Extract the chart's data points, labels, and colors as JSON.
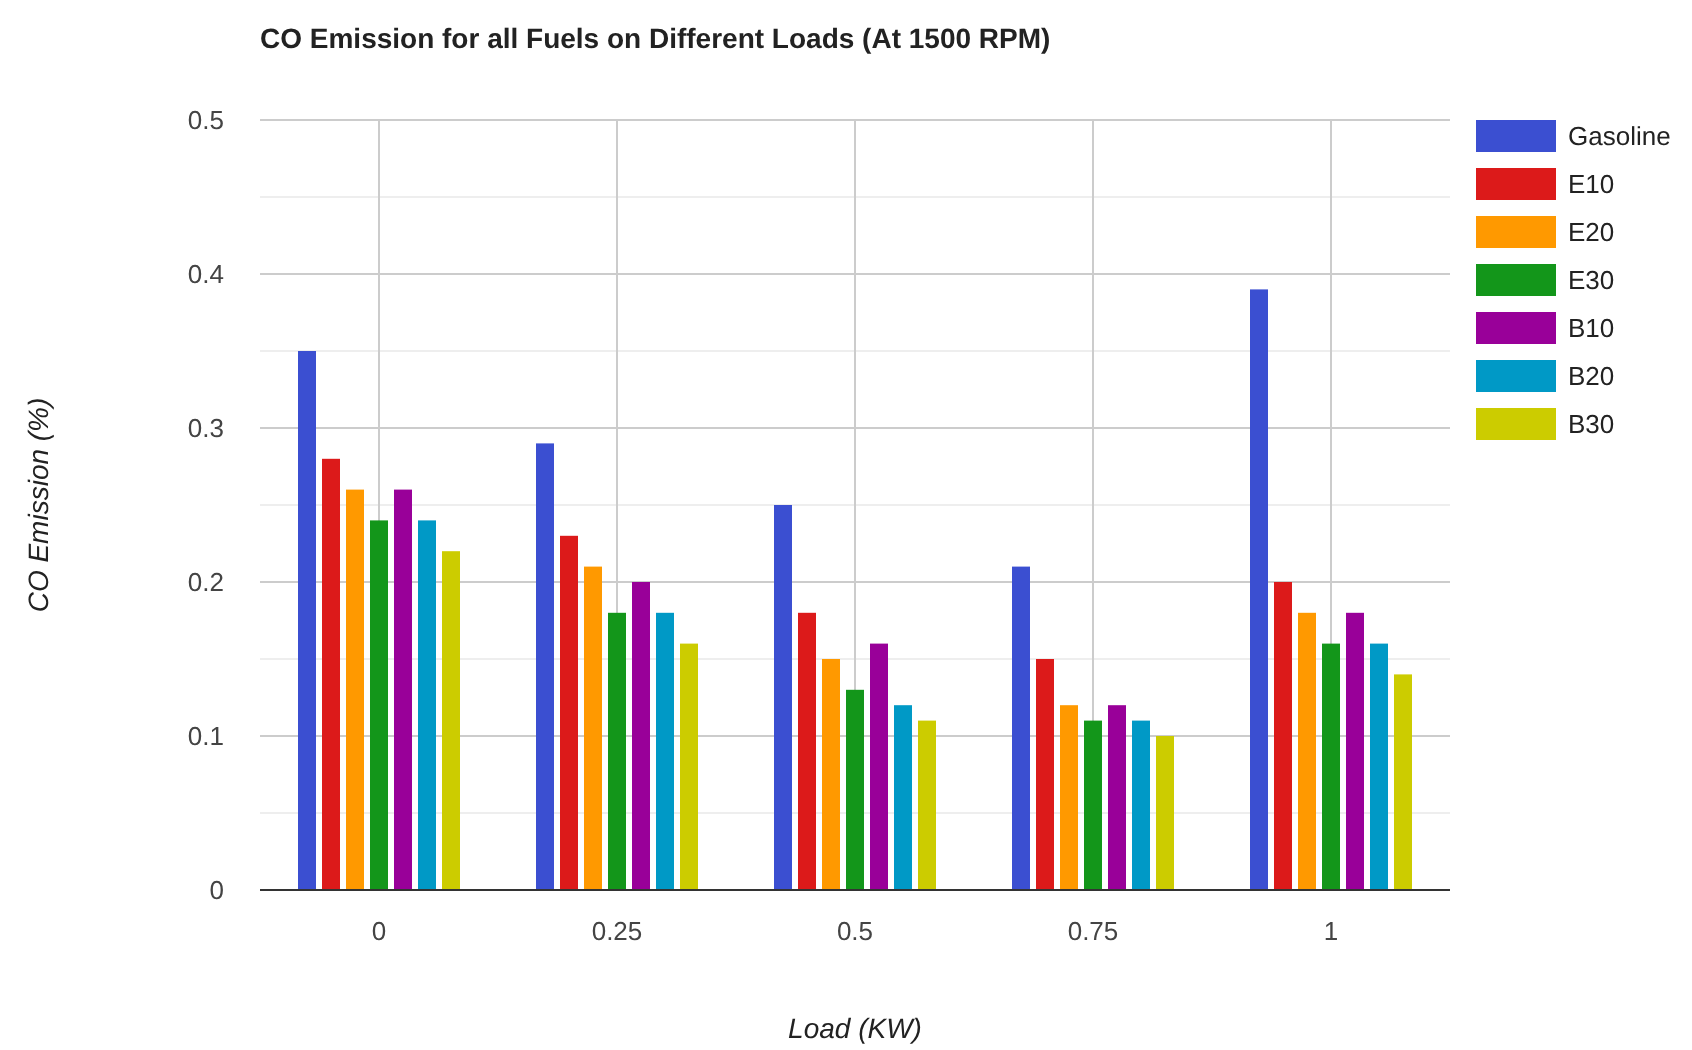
{
  "chart_data": {
    "type": "bar",
    "title": "CO Emission for all Fuels on Different Loads (At 1500 RPM)",
    "xlabel": "Load (KW)",
    "ylabel": "CO Emission (%)",
    "categories": [
      "0",
      "0.25",
      "0.5",
      "0.75",
      "1"
    ],
    "series": [
      {
        "name": "Gasoline",
        "color": "#3b4fd1",
        "values": [
          0.35,
          0.29,
          0.25,
          0.21,
          0.39
        ]
      },
      {
        "name": "E10",
        "color": "#dc1a1a",
        "values": [
          0.28,
          0.23,
          0.18,
          0.15,
          0.2
        ]
      },
      {
        "name": "E20",
        "color": "#ff9900",
        "values": [
          0.26,
          0.21,
          0.15,
          0.12,
          0.18
        ]
      },
      {
        "name": "E30",
        "color": "#13961a",
        "values": [
          0.24,
          0.18,
          0.13,
          0.11,
          0.16
        ]
      },
      {
        "name": "B10",
        "color": "#990099",
        "values": [
          0.26,
          0.2,
          0.16,
          0.12,
          0.18
        ]
      },
      {
        "name": "B20",
        "color": "#0099c6",
        "values": [
          0.24,
          0.18,
          0.12,
          0.11,
          0.16
        ]
      },
      {
        "name": "B30",
        "color": "#cccc00",
        "values": [
          0.22,
          0.16,
          0.11,
          0.1,
          0.14
        ]
      }
    ],
    "ylim": [
      0,
      0.5
    ],
    "yticks": [
      0,
      {
        "value": 0.05,
        "label": null
      },
      0.1,
      {
        "value": 0.15,
        "label": null
      },
      0.2,
      {
        "value": 0.25,
        "label": null
      },
      0.3,
      {
        "value": 0.35,
        "label": null
      },
      0.4,
      {
        "value": 0.45,
        "label": null
      },
      0.5
    ],
    "grid": true,
    "legend": "right"
  }
}
